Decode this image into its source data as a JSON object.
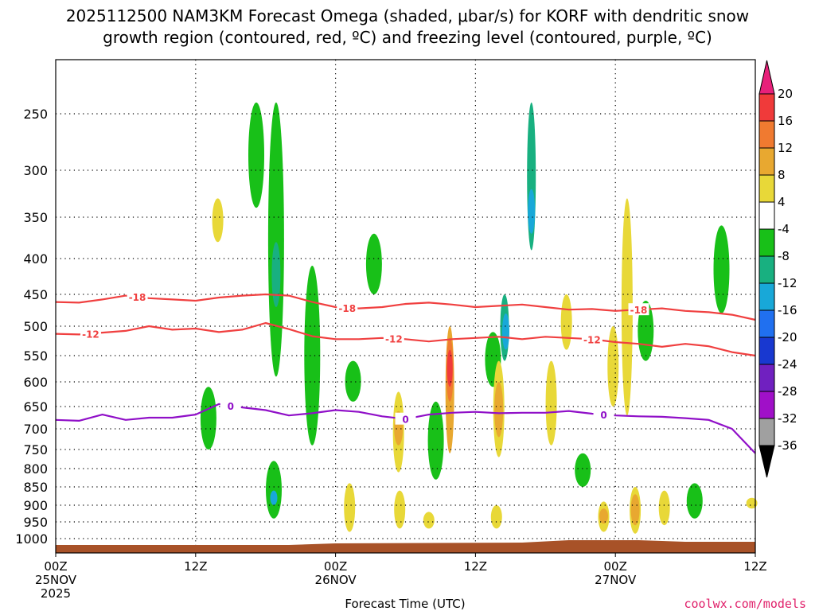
{
  "chart_data": {
    "type": "heatmap",
    "title_line1": "2025112500 NAM3KM Forecast Omega (shaded, μbar/s) for KORF with dendritic snow",
    "title_line2": "growth region (contoured, red, ºC) and freezing level (contoured, purple, ºC)",
    "xlabel": "Forecast Time (UTC)",
    "ylabel": "",
    "x_range_hours": [
      0,
      60
    ],
    "x_ticks": [
      {
        "hour": 0,
        "label": "00Z",
        "sub": "25NOV",
        "sub2": "2025"
      },
      {
        "hour": 12,
        "label": "12Z",
        "sub": "",
        "sub2": ""
      },
      {
        "hour": 24,
        "label": "00Z",
        "sub": "26NOV",
        "sub2": ""
      },
      {
        "hour": 36,
        "label": "12Z",
        "sub": "",
        "sub2": ""
      },
      {
        "hour": 48,
        "label": "00Z",
        "sub": "27NOV",
        "sub2": ""
      },
      {
        "hour": 60,
        "label": "12Z",
        "sub": "",
        "sub2": ""
      }
    ],
    "y_levels_hpa": [
      250,
      300,
      350,
      400,
      450,
      500,
      550,
      600,
      650,
      700,
      750,
      800,
      850,
      900,
      950,
      1000
    ],
    "y_range_hpa": [
      1020,
      200
    ],
    "colorbar": {
      "labels": [
        "20",
        "16",
        "12",
        "8",
        "4",
        "-4",
        "-8",
        "-12",
        "-16",
        "-20",
        "-24",
        "-28",
        "-32",
        "-36"
      ],
      "colors": [
        "#e8207a",
        "#f03a3a",
        "#f07a30",
        "#e8a830",
        "#e8d838",
        "#ffffff",
        "#18c018",
        "#18b080",
        "#18a8d8",
        "#2070f0",
        "#1838d0",
        "#7020c0",
        "#a010c8",
        "#a0a0a0",
        "#000000"
      ]
    },
    "contours": {
      "dgz_minus18": {
        "label": "-18",
        "color": "#f04040",
        "points": [
          [
            0,
            462
          ],
          [
            2,
            463
          ],
          [
            4,
            458
          ],
          [
            6,
            452
          ],
          [
            8,
            456
          ],
          [
            10,
            458
          ],
          [
            12,
            460
          ],
          [
            14,
            455
          ],
          [
            16,
            452
          ],
          [
            18,
            450
          ],
          [
            20,
            452
          ],
          [
            22,
            462
          ],
          [
            24,
            470
          ],
          [
            26,
            472
          ],
          [
            28,
            470
          ],
          [
            30,
            465
          ],
          [
            32,
            463
          ],
          [
            34,
            466
          ],
          [
            36,
            470
          ],
          [
            38,
            468
          ],
          [
            40,
            466
          ],
          [
            42,
            470
          ],
          [
            44,
            474
          ],
          [
            46,
            473
          ],
          [
            48,
            476
          ],
          [
            50,
            474
          ],
          [
            52,
            472
          ],
          [
            54,
            476
          ],
          [
            56,
            478
          ],
          [
            58,
            482
          ],
          [
            60,
            490
          ]
        ],
        "label_hours": [
          7,
          25,
          50
        ]
      },
      "dgz_minus12": {
        "label": "-12",
        "color": "#f04040",
        "points": [
          [
            0,
            513
          ],
          [
            2,
            514
          ],
          [
            4,
            511
          ],
          [
            6,
            508
          ],
          [
            8,
            500
          ],
          [
            10,
            506
          ],
          [
            12,
            504
          ],
          [
            14,
            510
          ],
          [
            16,
            506
          ],
          [
            18,
            495
          ],
          [
            20,
            505
          ],
          [
            22,
            517
          ],
          [
            24,
            522
          ],
          [
            26,
            522
          ],
          [
            28,
            520
          ],
          [
            30,
            522
          ],
          [
            32,
            526
          ],
          [
            34,
            522
          ],
          [
            36,
            520
          ],
          [
            38,
            518
          ],
          [
            40,
            522
          ],
          [
            42,
            518
          ],
          [
            44,
            520
          ],
          [
            46,
            522
          ],
          [
            48,
            527
          ],
          [
            50,
            530
          ],
          [
            52,
            535
          ],
          [
            54,
            530
          ],
          [
            56,
            534
          ],
          [
            58,
            544
          ],
          [
            60,
            550
          ]
        ],
        "label_hours": [
          3,
          29,
          46
        ]
      },
      "freezing_0": {
        "label": "0",
        "color": "#9010c8",
        "points": [
          [
            0,
            680
          ],
          [
            2,
            682
          ],
          [
            4,
            668
          ],
          [
            6,
            680
          ],
          [
            8,
            675
          ],
          [
            10,
            675
          ],
          [
            12,
            668
          ],
          [
            14,
            645
          ],
          [
            16,
            652
          ],
          [
            18,
            658
          ],
          [
            20,
            670
          ],
          [
            22,
            665
          ],
          [
            24,
            658
          ],
          [
            26,
            662
          ],
          [
            28,
            672
          ],
          [
            30,
            678
          ],
          [
            32,
            668
          ],
          [
            34,
            664
          ],
          [
            36,
            662
          ],
          [
            38,
            665
          ],
          [
            40,
            664
          ],
          [
            42,
            664
          ],
          [
            44,
            660
          ],
          [
            46,
            666
          ],
          [
            48,
            670
          ],
          [
            50,
            672
          ],
          [
            52,
            673
          ],
          [
            54,
            676
          ],
          [
            56,
            680
          ],
          [
            58,
            700
          ],
          [
            60,
            760
          ]
        ],
        "label_hours": [
          15,
          30,
          47
        ]
      }
    },
    "omega_blobs": [
      {
        "hour": 17.2,
        "p_top": 240,
        "p_bot": 340,
        "value": -6
      },
      {
        "hour": 18.9,
        "p_top": 240,
        "p_bot": 590,
        "value": -7
      },
      {
        "hour": 18.9,
        "p_top": 380,
        "p_bot": 470,
        "value": -10
      },
      {
        "hour": 22.0,
        "p_top": 410,
        "p_bot": 740,
        "value": -6
      },
      {
        "hour": 25.5,
        "p_top": 560,
        "p_bot": 640,
        "value": -6
      },
      {
        "hour": 27.3,
        "p_top": 370,
        "p_bot": 450,
        "value": -6
      },
      {
        "hour": 13.1,
        "p_top": 610,
        "p_bot": 750,
        "value": -6
      },
      {
        "hour": 18.7,
        "p_top": 780,
        "p_bot": 940,
        "value": -7
      },
      {
        "hour": 18.7,
        "p_top": 860,
        "p_bot": 900,
        "value": -12
      },
      {
        "hour": 32.6,
        "p_top": 640,
        "p_bot": 830,
        "value": -6
      },
      {
        "hour": 37.5,
        "p_top": 510,
        "p_bot": 610,
        "value": -6
      },
      {
        "hour": 38.5,
        "p_top": 450,
        "p_bot": 560,
        "value": -8
      },
      {
        "hour": 38.6,
        "p_top": 480,
        "p_bot": 540,
        "value": -13
      },
      {
        "hour": 40.8,
        "p_top": 240,
        "p_bot": 390,
        "value": -8
      },
      {
        "hour": 40.8,
        "p_top": 320,
        "p_bot": 370,
        "value": -14
      },
      {
        "hour": 45.2,
        "p_top": 760,
        "p_bot": 850,
        "value": -6
      },
      {
        "hour": 50.6,
        "p_top": 460,
        "p_bot": 560,
        "value": -6
      },
      {
        "hour": 57.1,
        "p_top": 360,
        "p_bot": 480,
        "value": -6
      },
      {
        "hour": 54.8,
        "p_top": 840,
        "p_bot": 940,
        "value": -6
      },
      {
        "hour": 13.9,
        "p_top": 330,
        "p_bot": 380,
        "value": 5
      },
      {
        "hour": 29.4,
        "p_top": 620,
        "p_bot": 810,
        "value": 6
      },
      {
        "hour": 29.4,
        "p_top": 660,
        "p_bot": 740,
        "value": 9
      },
      {
        "hour": 33.8,
        "p_top": 500,
        "p_bot": 760,
        "value": 8
      },
      {
        "hour": 33.8,
        "p_top": 520,
        "p_bot": 640,
        "value": 14
      },
      {
        "hour": 33.8,
        "p_top": 540,
        "p_bot": 610,
        "value": 19
      },
      {
        "hour": 38.0,
        "p_top": 560,
        "p_bot": 770,
        "value": 6
      },
      {
        "hour": 38.0,
        "p_top": 600,
        "p_bot": 720,
        "value": 9
      },
      {
        "hour": 42.5,
        "p_top": 560,
        "p_bot": 740,
        "value": 5
      },
      {
        "hour": 43.8,
        "p_top": 450,
        "p_bot": 540,
        "value": 5
      },
      {
        "hour": 49.0,
        "p_top": 330,
        "p_bot": 670,
        "value": 5
      },
      {
        "hour": 47.8,
        "p_top": 500,
        "p_bot": 650,
        "value": 5
      },
      {
        "hour": 25.2,
        "p_top": 840,
        "p_bot": 980,
        "value": 5
      },
      {
        "hour": 29.5,
        "p_top": 860,
        "p_bot": 970,
        "value": 5
      },
      {
        "hour": 32.0,
        "p_top": 920,
        "p_bot": 970,
        "value": 5
      },
      {
        "hour": 37.8,
        "p_top": 900,
        "p_bot": 970,
        "value": 6
      },
      {
        "hour": 47.0,
        "p_top": 890,
        "p_bot": 980,
        "value": 6
      },
      {
        "hour": 47.0,
        "p_top": 910,
        "p_bot": 955,
        "value": 10
      },
      {
        "hour": 49.7,
        "p_top": 850,
        "p_bot": 985,
        "value": 6
      },
      {
        "hour": 49.7,
        "p_top": 870,
        "p_bot": 960,
        "value": 10
      },
      {
        "hour": 52.2,
        "p_top": 860,
        "p_bot": 960,
        "value": 5
      },
      {
        "hour": 59.7,
        "p_top": 880,
        "p_bot": 910,
        "value": 5
      }
    ],
    "ground_color": "#a85228"
  },
  "credit": "coolwx.com/models"
}
